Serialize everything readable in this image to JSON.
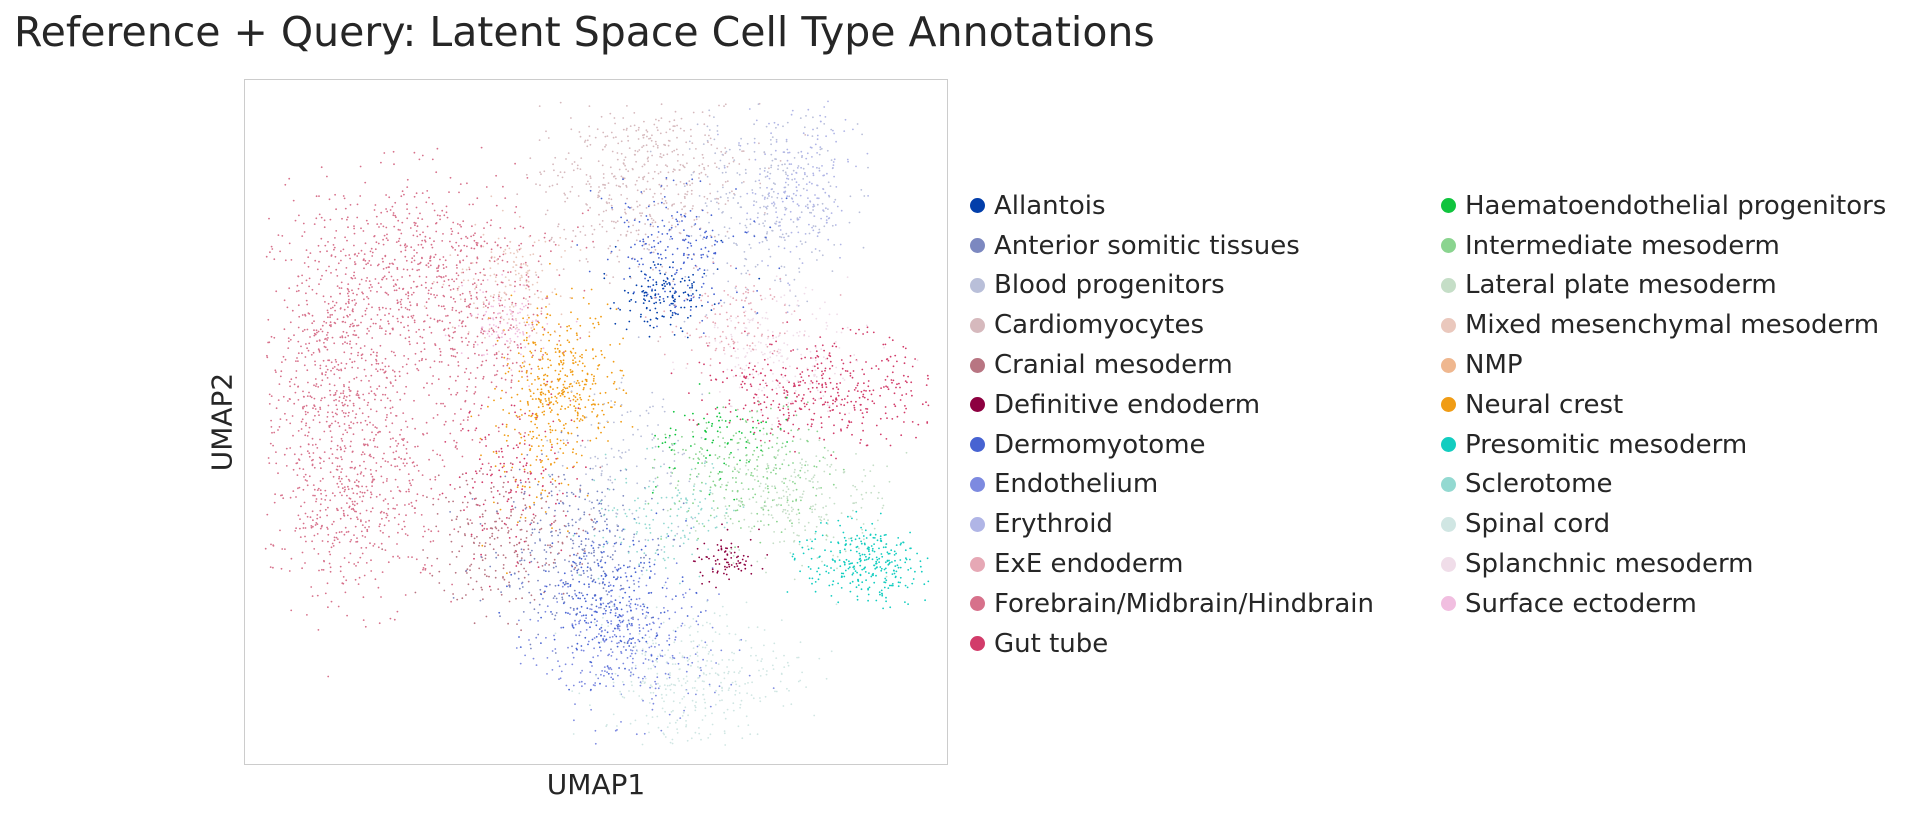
{
  "chart_data": {
    "type": "scatter",
    "title": "Reference + Query: Latent Space Cell Type Annotations",
    "xlabel": "UMAP1",
    "ylabel": "UMAP2",
    "xticks": "none",
    "yticks": "none",
    "grid": false,
    "legend_placement": "right, two columns",
    "series": [
      {
        "name": "Allantois",
        "color": "#023eaa"
      },
      {
        "name": "Anterior somitic tissues",
        "color": "#7c88c0"
      },
      {
        "name": "Blood progenitors",
        "color": "#b9bfd9"
      },
      {
        "name": "Cardiomyocytes",
        "color": "#d6b9bd"
      },
      {
        "name": "Cranial mesoderm",
        "color": "#b87582"
      },
      {
        "name": "Definitive endoderm",
        "color": "#8d0040"
      },
      {
        "name": "Dermomyotome",
        "color": "#4763d2"
      },
      {
        "name": "Endothelium",
        "color": "#7d8ae0"
      },
      {
        "name": "Erythroid",
        "color": "#b0b5e6"
      },
      {
        "name": "ExE endoderm",
        "color": "#e6a8b5"
      },
      {
        "name": "Forebrain/Midbrain/Hindbrain",
        "color": "#d7718b"
      },
      {
        "name": "Gut tube",
        "color": "#d23c6a"
      },
      {
        "name": "Haematoendothelial progenitors",
        "color": "#10c43e"
      },
      {
        "name": "Intermediate mesoderm",
        "color": "#8ad48f"
      },
      {
        "name": "Lateral plate mesoderm",
        "color": "#c5dec7"
      },
      {
        "name": "Mixed mesenchymal mesoderm",
        "color": "#eac8bd"
      },
      {
        "name": "NMP",
        "color": "#efb78f"
      },
      {
        "name": "Neural crest",
        "color": "#f09c15"
      },
      {
        "name": "Presomitic mesoderm",
        "color": "#13cdc0"
      },
      {
        "name": "Sclerotome",
        "color": "#93d9d1"
      },
      {
        "name": "Spinal cord",
        "color": "#d0e6e3"
      },
      {
        "name": "Splanchnic mesoderm",
        "color": "#f0dde9"
      },
      {
        "name": "Surface ectoderm",
        "color": "#f1bee0"
      }
    ]
  }
}
